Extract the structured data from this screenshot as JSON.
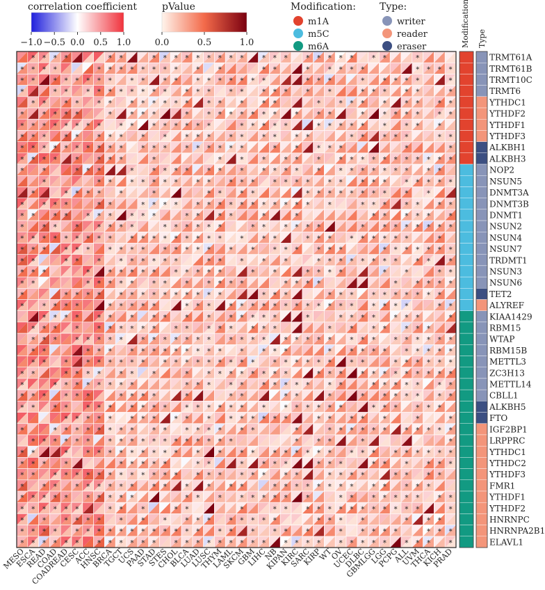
{
  "chart_data": {
    "type": "heatmap",
    "title": "",
    "legends": {
      "correlation": {
        "title": "correlation coefficient",
        "ticks": [
          "−1.0",
          "−0.5",
          "0.0",
          "0.5",
          "1.0"
        ],
        "range": [
          -1,
          1
        ],
        "colors": {
          "neg": "#1f1fdc",
          "mid": "#ffffff",
          "pos": "#f0323c"
        }
      },
      "pvalue": {
        "title": "pValue",
        "ticks": [
          "0.0",
          "0.5",
          "1.0"
        ],
        "range": [
          0,
          1
        ],
        "colors": {
          "low": "#fff4ec",
          "high": "#7a0010"
        }
      },
      "modification": {
        "title": "Modification:",
        "items": [
          {
            "label": "m1A",
            "color": "#e2432e"
          },
          {
            "label": "m5C",
            "color": "#4cbcdf"
          },
          {
            "label": "m6A",
            "color": "#129a82"
          }
        ]
      },
      "type": {
        "title": "Type:",
        "items": [
          {
            "label": "writer",
            "color": "#8894b8"
          },
          {
            "label": "reader",
            "color": "#f3957a"
          },
          {
            "label": "eraser",
            "color": "#3c4f82"
          }
        ]
      }
    },
    "annotation_titles": {
      "modification": "Modification",
      "type": "Type"
    },
    "cancers": [
      "MESO",
      "ESCA",
      "READ",
      "COAD",
      "COADREAD",
      "CESC",
      "ACC",
      "HNSC",
      "BRCA",
      "TGCT",
      "UCS",
      "PAAD",
      "STAD",
      "STES",
      "CHOL",
      "BLCA",
      "LUAD",
      "LUSC",
      "THYM",
      "LAML",
      "SKCM",
      "GBM",
      "LIHC",
      "NB",
      "KIPAN",
      "KIRC",
      "SARC",
      "KIRP",
      "WT",
      "OV",
      "UCEC",
      "DLBC",
      "GBMLGG",
      "LGG",
      "PCPG",
      "ALL",
      "UVM",
      "THCA",
      "KICH",
      "PRAD"
    ],
    "genes": [
      {
        "name": "TRMT61A",
        "mod": "m1A",
        "type": "writer"
      },
      {
        "name": "TRMT61B",
        "mod": "m1A",
        "type": "writer"
      },
      {
        "name": "TRMT10C",
        "mod": "m1A",
        "type": "writer"
      },
      {
        "name": "TRMT6",
        "mod": "m1A",
        "type": "writer"
      },
      {
        "name": "YTHDC1",
        "mod": "m1A",
        "type": "reader"
      },
      {
        "name": "YTHDF2",
        "mod": "m1A",
        "type": "reader"
      },
      {
        "name": "YTHDF1",
        "mod": "m1A",
        "type": "reader"
      },
      {
        "name": "YTHDF3",
        "mod": "m1A",
        "type": "reader"
      },
      {
        "name": "ALKBH1",
        "mod": "m1A",
        "type": "eraser"
      },
      {
        "name": "ALKBH3",
        "mod": "m1A",
        "type": "eraser"
      },
      {
        "name": "NOP2",
        "mod": "m5C",
        "type": "writer"
      },
      {
        "name": "NSUN5",
        "mod": "m5C",
        "type": "writer"
      },
      {
        "name": "DNMT3A",
        "mod": "m5C",
        "type": "writer"
      },
      {
        "name": "DNMT3B",
        "mod": "m5C",
        "type": "writer"
      },
      {
        "name": "DNMT1",
        "mod": "m5C",
        "type": "writer"
      },
      {
        "name": "NSUN2",
        "mod": "m5C",
        "type": "writer"
      },
      {
        "name": "NSUN4",
        "mod": "m5C",
        "type": "writer"
      },
      {
        "name": "NSUN7",
        "mod": "m5C",
        "type": "writer"
      },
      {
        "name": "TRDMT1",
        "mod": "m5C",
        "type": "writer"
      },
      {
        "name": "NSUN3",
        "mod": "m5C",
        "type": "writer"
      },
      {
        "name": "NSUN6",
        "mod": "m5C",
        "type": "writer"
      },
      {
        "name": "TET2",
        "mod": "m5C",
        "type": "eraser"
      },
      {
        "name": "ALYREF",
        "mod": "m5C",
        "type": "reader"
      },
      {
        "name": "KIAA1429",
        "mod": "m6A",
        "type": "writer"
      },
      {
        "name": "RBM15",
        "mod": "m6A",
        "type": "writer"
      },
      {
        "name": "WTAP",
        "mod": "m6A",
        "type": "writer"
      },
      {
        "name": "RBM15B",
        "mod": "m6A",
        "type": "writer"
      },
      {
        "name": "METTL3",
        "mod": "m6A",
        "type": "writer"
      },
      {
        "name": "ZC3H13",
        "mod": "m6A",
        "type": "writer"
      },
      {
        "name": "METTL14",
        "mod": "m6A",
        "type": "writer"
      },
      {
        "name": "CBLL1",
        "mod": "m6A",
        "type": "writer"
      },
      {
        "name": "ALKBH5",
        "mod": "m6A",
        "type": "eraser"
      },
      {
        "name": "FTO",
        "mod": "m6A",
        "type": "eraser"
      },
      {
        "name": "IGF2BP1",
        "mod": "m6A",
        "type": "reader"
      },
      {
        "name": "LRPPRC",
        "mod": "m6A",
        "type": "reader"
      },
      {
        "name": "YTHDC1",
        "mod": "m6A",
        "type": "reader"
      },
      {
        "name": "YTHDC2",
        "mod": "m6A",
        "type": "reader"
      },
      {
        "name": "YTHDF3",
        "mod": "m6A",
        "type": "reader"
      },
      {
        "name": "FMR1",
        "mod": "m6A",
        "type": "reader"
      },
      {
        "name": "YTHDF1",
        "mod": "m6A",
        "type": "reader"
      },
      {
        "name": "YTHDF2",
        "mod": "m6A",
        "type": "reader"
      },
      {
        "name": "HNRNPC",
        "mod": "m6A",
        "type": "reader"
      },
      {
        "name": "HNRNPA2B1",
        "mod": "m6A",
        "type": "reader"
      },
      {
        "name": "ELAVL1",
        "mod": "m6A",
        "type": "reader"
      }
    ],
    "significance_marker": "*"
  }
}
